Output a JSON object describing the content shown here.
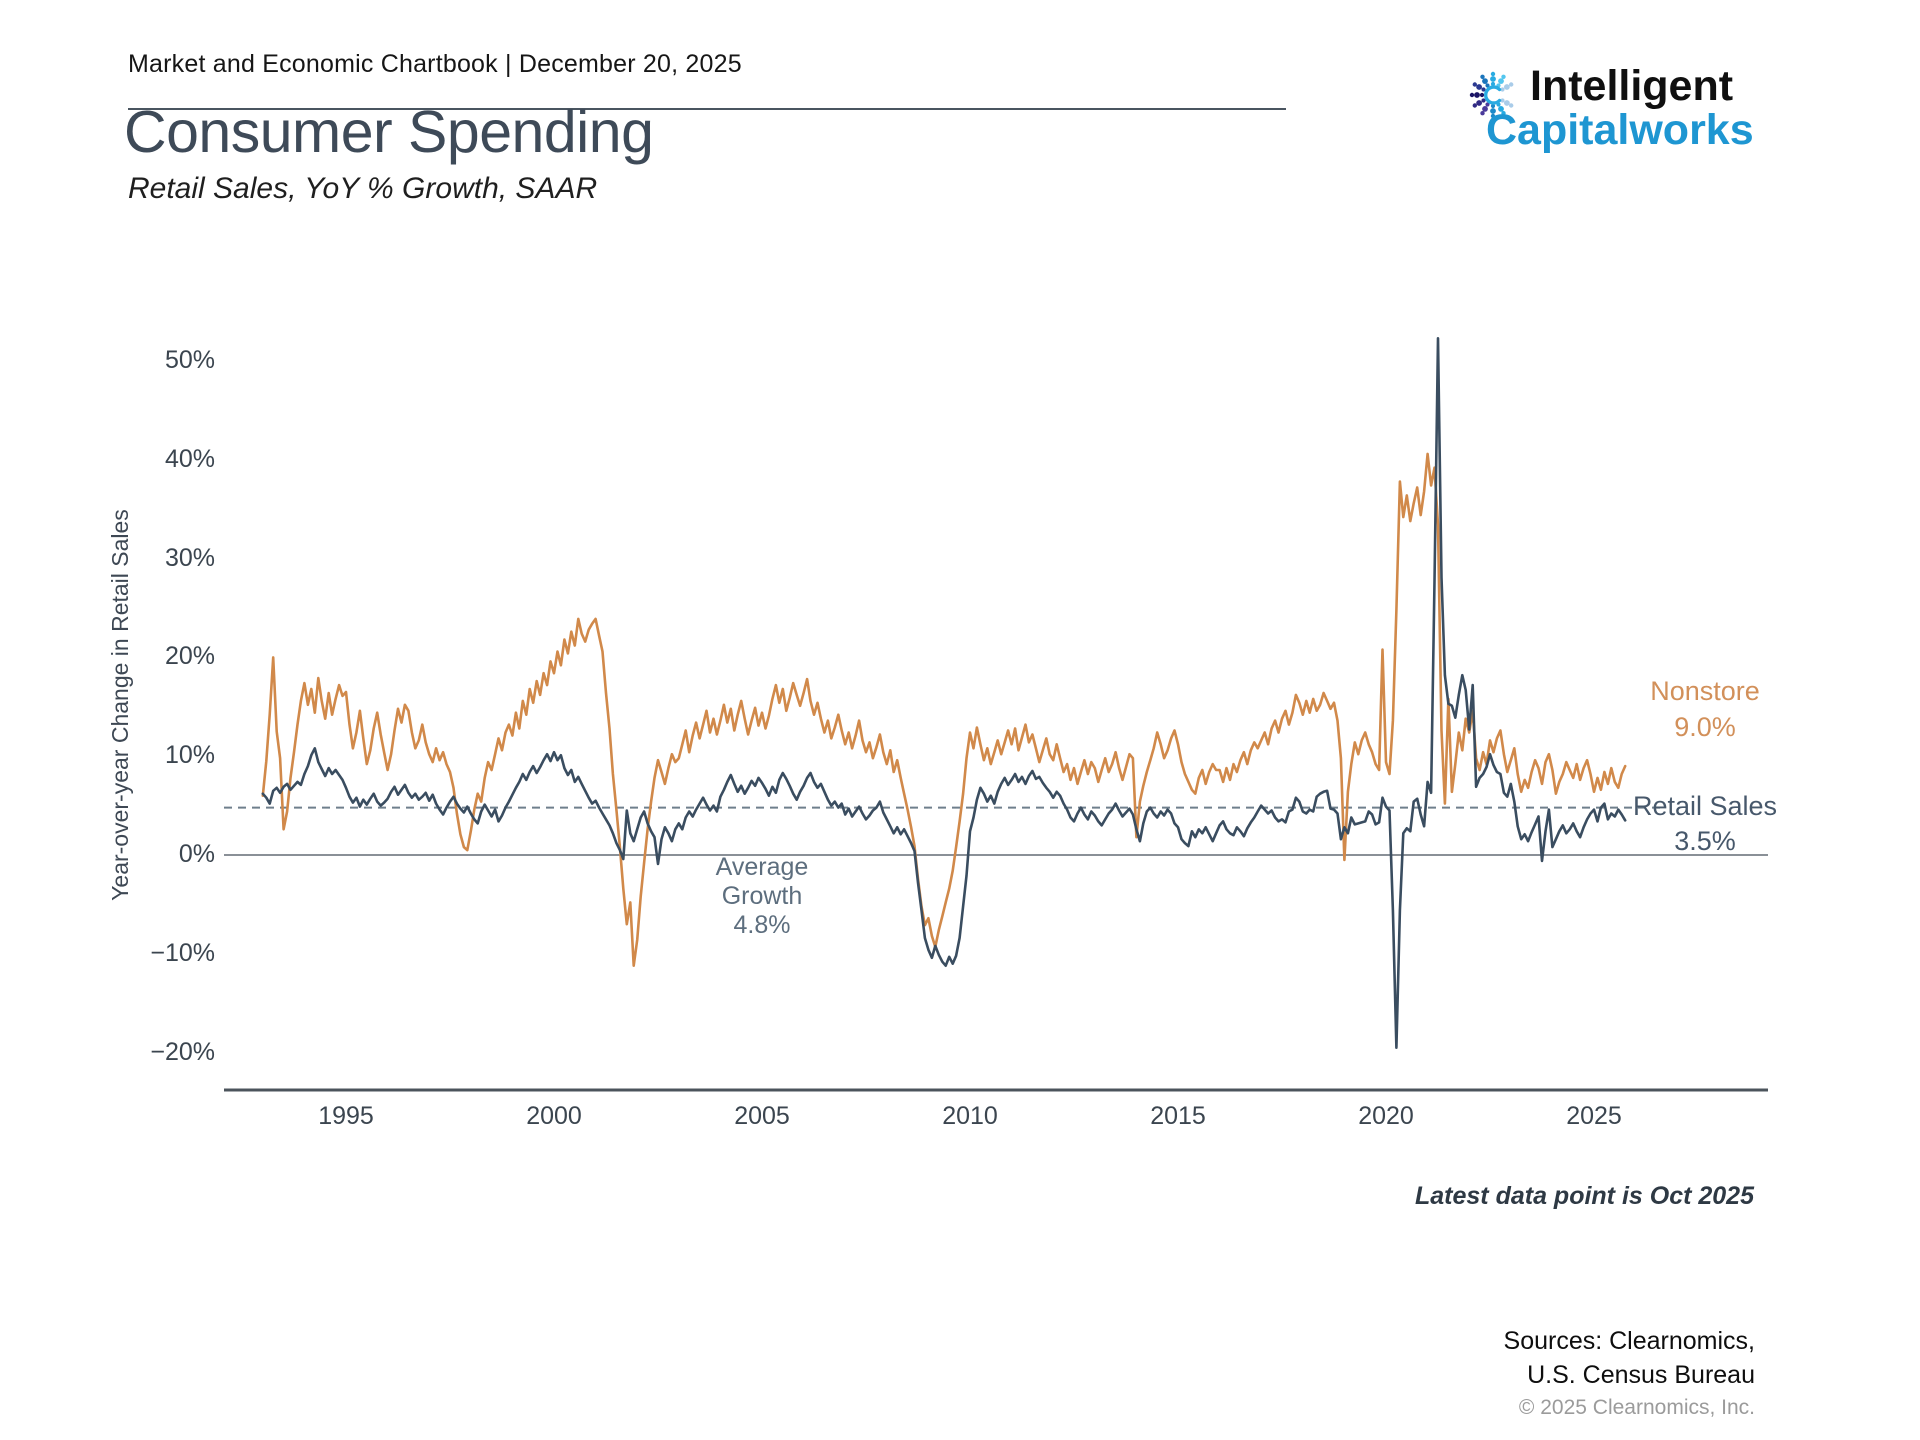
{
  "header": {
    "chartbook_line": "Market and Economic Chartbook | December 20, 2025"
  },
  "title": "Consumer Spending",
  "subtitle": "Retail Sales, YoY % Growth, SAAR",
  "logo": {
    "line1": "Intelligent",
    "line2": "Capitalworks",
    "blue": "#1e96d2"
  },
  "footer": {
    "latest_note": "Latest data point is Oct 2025",
    "sources_line1": "Sources: Clearnomics,",
    "sources_line2": "U.S. Census Bureau",
    "copyright": "© 2025 Clearnomics, Inc."
  },
  "chart_data": {
    "type": "line",
    "title": "Consumer Spending",
    "ylabel": "Year-over-year Change in Retail Sales",
    "xlabel": "",
    "grid": false,
    "legend_position": "right-of-line-ends",
    "ylim": [
      -25,
      55
    ],
    "xlim": [
      1992.5,
      2029
    ],
    "x_ticks": [
      {
        "v": 1995,
        "label": "1995"
      },
      {
        "v": 2000,
        "label": "2000"
      },
      {
        "v": 2005,
        "label": "2005"
      },
      {
        "v": 2010,
        "label": "2010"
      },
      {
        "v": 2015,
        "label": "2015"
      },
      {
        "v": 2020,
        "label": "2020"
      },
      {
        "v": 2025,
        "label": "2025"
      }
    ],
    "y_ticks": [
      {
        "v": 50,
        "label": "50%"
      },
      {
        "v": 40,
        "label": "40%"
      },
      {
        "v": 30,
        "label": "30%"
      },
      {
        "v": 20,
        "label": "20%"
      },
      {
        "v": 10,
        "label": "10%"
      },
      {
        "v": 0,
        "label": "0%"
      },
      {
        "v": -10,
        "label": "−10%"
      },
      {
        "v": -20,
        "label": "−20%"
      }
    ],
    "average_growth": {
      "value": 4.8,
      "line1": "Average",
      "line2": "Growth",
      "line3": "4.8%"
    },
    "start_year": 1993,
    "points_per_year": 12,
    "latest_point": "Oct 2025",
    "series": [
      {
        "name": "Nonstore",
        "latest_label": "9.0%",
        "color": "#d1894a",
        "values": [
          6.0,
          9.5,
          14.2,
          20.0,
          12.5,
          9.8,
          2.6,
          4.4,
          7.8,
          10.4,
          13.2,
          15.6,
          17.4,
          15.2,
          16.8,
          14.4,
          17.9,
          15.6,
          13.8,
          16.4,
          14.2,
          15.8,
          17.2,
          16.1,
          16.5,
          13.2,
          10.8,
          12.4,
          14.6,
          11.8,
          9.2,
          10.6,
          12.8,
          14.4,
          12.2,
          10.4,
          8.6,
          10.2,
          12.6,
          14.8,
          13.4,
          15.2,
          14.6,
          12.4,
          10.8,
          11.6,
          13.2,
          11.4,
          10.2,
          9.4,
          10.8,
          9.6,
          10.4,
          9.2,
          8.4,
          6.8,
          4.2,
          2.1,
          0.8,
          0.5,
          2.4,
          4.6,
          6.2,
          5.4,
          7.8,
          9.4,
          8.6,
          10.2,
          11.8,
          10.6,
          12.4,
          13.2,
          12.1,
          14.4,
          12.8,
          15.6,
          14.2,
          16.8,
          15.4,
          17.6,
          16.2,
          18.4,
          17.2,
          19.6,
          18.4,
          20.6,
          19.2,
          21.8,
          20.4,
          22.6,
          21.2,
          23.9,
          22.4,
          21.6,
          22.8,
          23.4,
          23.9,
          22.2,
          20.6,
          16.4,
          12.8,
          8.2,
          4.6,
          0.8,
          -3.4,
          -7.0,
          -4.8,
          -11.2,
          -8.6,
          -4.2,
          -0.8,
          2.6,
          5.4,
          7.8,
          9.6,
          8.4,
          7.2,
          8.8,
          10.2,
          9.4,
          9.8,
          11.2,
          12.6,
          10.4,
          12.1,
          13.4,
          11.8,
          13.2,
          14.6,
          12.4,
          13.8,
          12.2,
          13.6,
          15.2,
          13.4,
          14.8,
          12.6,
          14.2,
          15.6,
          13.8,
          12.2,
          13.6,
          14.9,
          13.1,
          14.4,
          12.8,
          14.1,
          15.8,
          17.2,
          15.4,
          16.8,
          14.6,
          15.9,
          17.4,
          16.2,
          15.1,
          16.4,
          17.8,
          15.6,
          14.2,
          15.4,
          13.8,
          12.4,
          13.6,
          11.8,
          12.9,
          14.2,
          12.6,
          11.2,
          12.4,
          10.8,
          12.1,
          13.6,
          11.6,
          10.4,
          11.4,
          9.8,
          10.9,
          12.2,
          10.4,
          9.2,
          10.6,
          8.4,
          9.6,
          7.8,
          6.2,
          4.6,
          2.8,
          0.9,
          -2.4,
          -5.2,
          -7.1,
          -6.4,
          -8.2,
          -9.3,
          -7.6,
          -6.2,
          -4.8,
          -3.4,
          -1.6,
          0.8,
          3.4,
          6.2,
          9.8,
          12.4,
          10.8,
          12.9,
          11.2,
          9.6,
          10.8,
          9.2,
          10.4,
          11.6,
          10.2,
          11.4,
          12.6,
          11.2,
          12.8,
          10.6,
          11.9,
          13.2,
          11.4,
          12.2,
          10.8,
          9.4,
          10.6,
          11.8,
          10.2,
          9.6,
          11.2,
          9.8,
          8.4,
          9.2,
          7.6,
          8.8,
          7.2,
          8.4,
          9.6,
          8.2,
          9.4,
          8.8,
          7.4,
          8.6,
          9.8,
          8.4,
          9.2,
          10.4,
          8.8,
          7.6,
          8.9,
          10.2,
          9.8,
          1.8,
          5.4,
          7.0,
          8.4,
          9.6,
          10.8,
          12.4,
          11.2,
          9.8,
          10.6,
          11.8,
          12.6,
          11.2,
          9.4,
          8.2,
          7.4,
          6.6,
          6.2,
          7.8,
          8.6,
          7.2,
          8.4,
          9.2,
          8.6,
          8.6,
          7.4,
          8.8,
          7.6,
          9.2,
          8.4,
          9.6,
          10.4,
          9.2,
          10.6,
          11.4,
          10.8,
          11.6,
          12.4,
          11.2,
          12.8,
          13.6,
          12.4,
          13.8,
          14.6,
          13.2,
          14.4,
          16.2,
          15.4,
          14.2,
          15.6,
          14.4,
          15.8,
          14.6,
          15.2,
          16.4,
          15.6,
          14.8,
          15.4,
          13.6,
          9.8,
          -0.5,
          6.4,
          9.2,
          11.4,
          10.2,
          11.6,
          12.4,
          11.2,
          10.4,
          9.2,
          8.6,
          20.8,
          9.4,
          8.2,
          13.6,
          24.8,
          37.8,
          34.2,
          36.4,
          33.8,
          35.6,
          37.2,
          34.4,
          36.8,
          40.6,
          37.4,
          39.2,
          33.4,
          12.6,
          5.2,
          15.8,
          6.4,
          9.2,
          12.4,
          10.6,
          13.8,
          12.4,
          14.6,
          9.8,
          8.6,
          10.4,
          9.2,
          11.6,
          10.4,
          11.8,
          12.6,
          10.2,
          8.4,
          9.6,
          10.8,
          8.2,
          6.4,
          7.6,
          6.8,
          8.4,
          9.6,
          8.8,
          7.2,
          9.4,
          10.2,
          8.6,
          6.2,
          7.4,
          8.2,
          9.4,
          8.6,
          7.8,
          9.2,
          7.6,
          8.8,
          9.6,
          8.2,
          6.4,
          7.8,
          6.6,
          8.4,
          7.2,
          8.8,
          7.4,
          6.8,
          8.2,
          9.0
        ]
      },
      {
        "name": "Retail Sales",
        "latest_label": "3.5%",
        "color": "#3a4d60",
        "values": [
          6.2,
          5.8,
          5.2,
          6.5,
          6.8,
          6.3,
          6.9,
          7.2,
          6.6,
          7.0,
          7.4,
          7.1,
          8.2,
          9.0,
          10.1,
          10.8,
          9.4,
          8.7,
          8.0,
          8.8,
          8.2,
          8.6,
          8.1,
          7.6,
          6.8,
          5.9,
          5.3,
          5.8,
          4.9,
          5.6,
          5.1,
          5.7,
          6.2,
          5.4,
          5.0,
          5.3,
          5.7,
          6.4,
          6.9,
          6.1,
          6.6,
          7.1,
          6.3,
          5.8,
          6.2,
          5.6,
          5.9,
          6.3,
          5.5,
          6.1,
          5.2,
          4.6,
          4.1,
          4.8,
          5.4,
          5.9,
          5.2,
          4.7,
          4.3,
          4.9,
          4.2,
          3.6,
          3.2,
          4.4,
          5.1,
          4.5,
          3.9,
          4.6,
          3.4,
          4.0,
          4.8,
          5.4,
          6.1,
          6.8,
          7.4,
          8.2,
          7.6,
          8.4,
          9.0,
          8.3,
          8.9,
          9.6,
          10.2,
          9.5,
          10.4,
          9.6,
          10.1,
          8.8,
          8.1,
          8.6,
          7.4,
          7.9,
          7.2,
          6.5,
          5.8,
          5.2,
          5.5,
          4.8,
          4.2,
          3.6,
          3.0,
          2.2,
          1.2,
          0.5,
          -0.4,
          4.5,
          2.2,
          1.4,
          2.6,
          3.8,
          4.4,
          3.2,
          2.4,
          1.8,
          -0.9,
          1.6,
          2.8,
          2.2,
          1.4,
          2.6,
          3.2,
          2.6,
          3.8,
          4.4,
          3.9,
          4.6,
          5.2,
          5.8,
          5.1,
          4.5,
          5.0,
          4.4,
          5.9,
          6.6,
          7.4,
          8.1,
          7.2,
          6.4,
          7.0,
          6.2,
          6.8,
          7.5,
          7.0,
          7.8,
          7.3,
          6.7,
          6.0,
          6.9,
          6.3,
          7.6,
          8.3,
          7.7,
          7.0,
          6.2,
          5.6,
          6.4,
          7.0,
          7.8,
          8.3,
          7.4,
          6.8,
          7.2,
          6.4,
          5.6,
          5.0,
          5.4,
          4.8,
          5.2,
          4.1,
          4.7,
          3.9,
          4.4,
          4.9,
          4.2,
          3.6,
          4.0,
          4.5,
          4.8,
          5.4,
          4.3,
          3.6,
          2.9,
          2.2,
          2.8,
          2.1,
          2.6,
          1.9,
          1.2,
          0.4,
          -2.8,
          -5.6,
          -8.4,
          -9.6,
          -10.4,
          -9.2,
          -10.1,
          -10.8,
          -11.2,
          -10.3,
          -11.0,
          -10.2,
          -8.4,
          -5.2,
          -2.1,
          2.4,
          3.8,
          5.6,
          6.8,
          6.2,
          5.4,
          6.0,
          5.2,
          6.4,
          7.2,
          7.8,
          7.1,
          7.6,
          8.2,
          7.4,
          7.9,
          7.2,
          8.0,
          8.5,
          7.7,
          7.9,
          7.3,
          6.8,
          6.4,
          5.8,
          6.4,
          6.0,
          5.2,
          4.6,
          3.8,
          3.4,
          4.2,
          4.8,
          4.1,
          3.6,
          4.4,
          4.0,
          3.4,
          3.0,
          3.6,
          4.2,
          4.6,
          5.2,
          4.5,
          3.9,
          4.3,
          4.7,
          4.1,
          2.6,
          1.4,
          3.2,
          4.4,
          4.8,
          4.2,
          3.8,
          4.4,
          4.0,
          4.6,
          4.2,
          3.2,
          2.8,
          1.6,
          1.2,
          0.9,
          2.4,
          1.8,
          2.6,
          2.2,
          2.8,
          2.1,
          1.4,
          2.2,
          3.0,
          3.4,
          2.6,
          2.2,
          2.0,
          2.8,
          2.4,
          1.9,
          2.7,
          3.3,
          3.8,
          4.4,
          5.0,
          4.6,
          4.2,
          4.5,
          3.8,
          3.4,
          3.6,
          3.3,
          4.4,
          4.6,
          5.8,
          5.4,
          4.4,
          4.2,
          4.6,
          4.4,
          5.9,
          6.2,
          6.4,
          6.5,
          4.7,
          4.6,
          4.2,
          1.6,
          2.8,
          2.2,
          3.8,
          3.1,
          3.2,
          3.3,
          3.4,
          4.4,
          4.1,
          3.1,
          3.3,
          5.8,
          4.9,
          4.5,
          -5.6,
          -19.5,
          -5.6,
          2.2,
          2.7,
          2.4,
          5.4,
          5.7,
          4.1,
          2.9,
          7.4,
          6.3,
          27.7,
          52.3,
          28.1,
          18.2,
          15.3,
          15.1,
          13.9,
          16.2,
          18.2,
          16.7,
          12.7,
          17.2,
          6.9,
          7.8,
          8.2,
          8.9,
          10.2,
          9.1,
          8.4,
          8.2,
          6.3,
          5.9,
          7.2,
          5.4,
          2.9,
          1.6,
          2.1,
          1.4,
          2.3,
          3.1,
          3.9,
          -0.6,
          2.4,
          4.6,
          0.8,
          1.6,
          2.4,
          3.0,
          2.2,
          2.6,
          3.2,
          2.4,
          1.8,
          2.8,
          3.6,
          4.2,
          4.6,
          3.4,
          4.8,
          5.2,
          3.6,
          4.2,
          3.9,
          4.6,
          4.1,
          3.5
        ]
      }
    ]
  }
}
